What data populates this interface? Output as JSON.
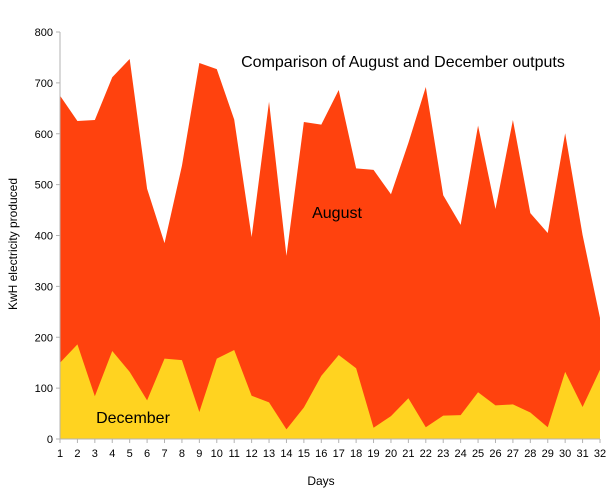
{
  "chart_data": {
    "type": "area",
    "title": "Comparison of August and December outputs",
    "xlabel": "Days",
    "ylabel": "KwH electricity produced",
    "ylim": [
      0,
      800
    ],
    "yticks": [
      0,
      100,
      200,
      300,
      400,
      500,
      600,
      700,
      800
    ],
    "grid": false,
    "x": [
      1,
      2,
      3,
      4,
      5,
      6,
      7,
      8,
      9,
      10,
      11,
      12,
      13,
      14,
      15,
      16,
      17,
      18,
      19,
      20,
      21,
      22,
      23,
      24,
      25,
      26,
      27,
      28,
      29,
      30,
      31,
      32
    ],
    "series": [
      {
        "name": "August",
        "color": "#ff420e",
        "values": [
          675,
          625,
          627,
          711,
          747,
          492,
          385,
          537,
          739,
          727,
          628,
          397,
          663,
          360,
          623,
          618,
          686,
          532,
          529,
          481,
          582,
          692,
          479,
          421,
          616,
          452,
          627,
          444,
          405,
          601,
          401,
          238
        ]
      },
      {
        "name": "December",
        "color": "#ffd320",
        "values": [
          150,
          186,
          84,
          173,
          132,
          76,
          158,
          155,
          53,
          158,
          175,
          85,
          72,
          19,
          62,
          124,
          165,
          139,
          22,
          45,
          80,
          23,
          46,
          47,
          92,
          66,
          68,
          52,
          23,
          132,
          63,
          136
        ]
      }
    ]
  }
}
